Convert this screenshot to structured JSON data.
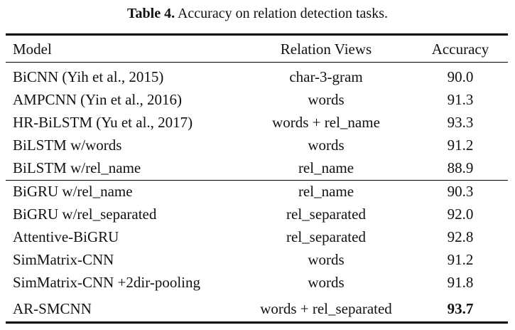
{
  "caption": {
    "label": "Table 4.",
    "text": " Accuracy on relation detection tasks."
  },
  "table": {
    "headers": [
      "Model",
      "Relation Views",
      "Accuracy"
    ],
    "rows": [
      {
        "model": "BiCNN (Yih et al., 2015)",
        "view": "char-3-gram",
        "acc": "90.0"
      },
      {
        "model": "AMPCNN (Yin et al., 2016)",
        "view": "words",
        "acc": "91.3"
      },
      {
        "model": "HR-BiLSTM (Yu et al., 2017)",
        "view": "words + rel_name",
        "acc": "93.3"
      },
      {
        "model": "BiLSTM w/words",
        "view": "words",
        "acc": "91.2"
      },
      {
        "model": "BiLSTM w/rel_name",
        "view": "rel_name",
        "acc": "88.9"
      },
      {
        "model": "BiGRU w/rel_name",
        "view": "rel_name",
        "acc": "90.3"
      },
      {
        "model": "BiGRU w/rel_separated",
        "view": "rel_separated",
        "acc": "92.0"
      },
      {
        "model": "Attentive-BiGRU",
        "view": "rel_separated",
        "acc": "92.8"
      },
      {
        "model": "SimMatrix-CNN",
        "view": "words",
        "acc": "91.2"
      },
      {
        "model": "SimMatrix-CNN +2dir-pooling",
        "view": "words",
        "acc": "91.8"
      },
      {
        "model": "AR-SMCNN",
        "view": "words + rel_separated",
        "acc": "93.7"
      }
    ]
  }
}
